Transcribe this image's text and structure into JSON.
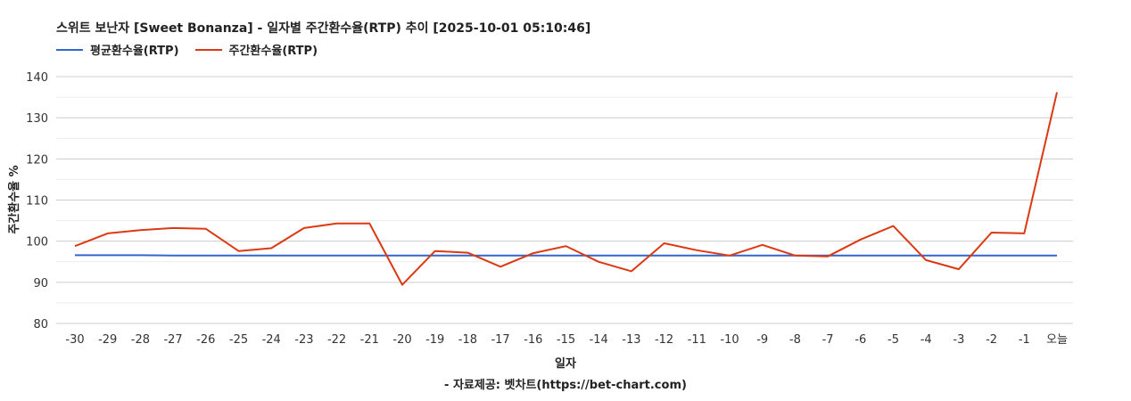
{
  "chart_data": {
    "type": "line",
    "title": "스위트 보난자 [Sweet Bonanza] - 일자별 주간환수율(RTP) 추이 [2025-10-01 05:10:46]",
    "xlabel": "일자",
    "ylabel": "주간환수율 %",
    "source": "- 자료제공: 벳차트(https://bet-chart.com)",
    "categories": [
      "-30",
      "-29",
      "-28",
      "-27",
      "-26",
      "-25",
      "-24",
      "-23",
      "-22",
      "-21",
      "-20",
      "-19",
      "-18",
      "-17",
      "-16",
      "-15",
      "-14",
      "-13",
      "-12",
      "-11",
      "-10",
      "-9",
      "-8",
      "-7",
      "-6",
      "-5",
      "-4",
      "-3",
      "-2",
      "-1",
      "오늘"
    ],
    "ylim": [
      80,
      140
    ],
    "yticks": [
      80,
      90,
      100,
      110,
      120,
      130,
      140
    ],
    "grid": true,
    "legend_position": "top-left",
    "series": [
      {
        "name": "평균환수율(RTP)",
        "color": "#3366cc",
        "values": [
          96.6,
          96.6,
          96.6,
          96.5,
          96.5,
          96.5,
          96.5,
          96.5,
          96.5,
          96.5,
          96.5,
          96.5,
          96.5,
          96.5,
          96.5,
          96.5,
          96.5,
          96.5,
          96.5,
          96.5,
          96.5,
          96.5,
          96.5,
          96.5,
          96.5,
          96.5,
          96.5,
          96.5,
          96.5,
          96.5,
          96.5
        ]
      },
      {
        "name": "주간환수율(RTP)",
        "color": "#dc3912",
        "values": [
          98.8,
          101.9,
          102.7,
          103.2,
          103.0,
          97.6,
          98.3,
          103.2,
          104.3,
          104.3,
          89.4,
          97.6,
          97.2,
          93.8,
          97.1,
          98.8,
          95.0,
          92.7,
          99.5,
          97.8,
          96.5,
          99.1,
          96.5,
          96.3,
          100.4,
          103.7,
          95.4,
          93.2,
          102.1,
          101.9,
          136.2
        ]
      }
    ]
  }
}
